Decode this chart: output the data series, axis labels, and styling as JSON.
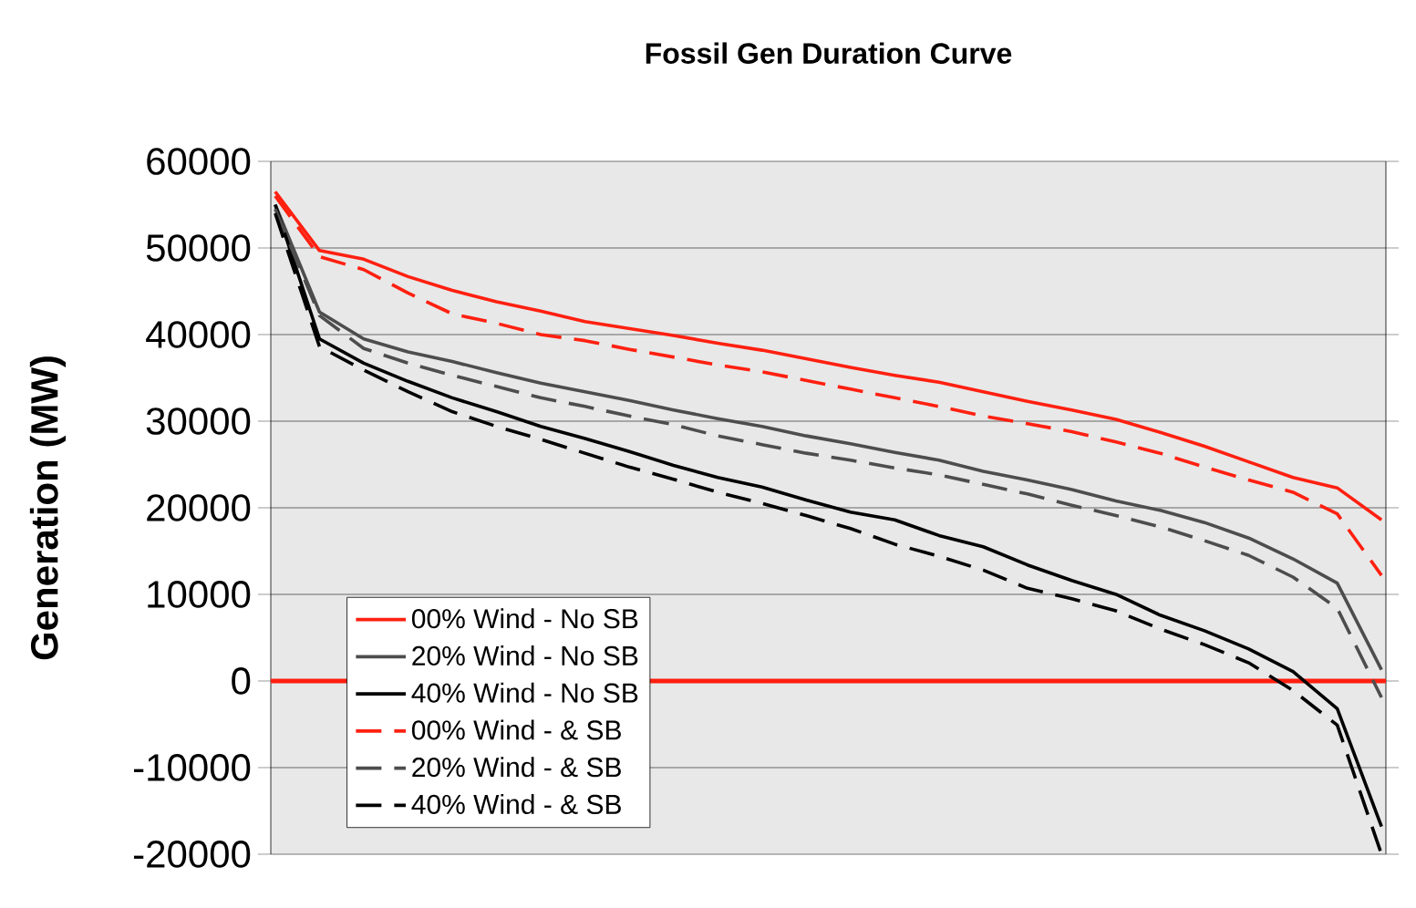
{
  "chart_data": {
    "type": "line",
    "title": "Fossil Gen Duration Curve",
    "ylabel": "Generation (MW)",
    "categories": [
      null,
      null,
      null,
      null,
      null,
      null,
      null,
      null,
      null,
      null,
      null,
      null,
      null,
      null,
      null,
      null,
      null,
      null,
      null,
      null,
      null,
      null,
      null,
      null,
      null,
      null
    ],
    "series": [
      {
        "name": "00% Wind - No SB",
        "color": "#ff2010",
        "line_style": "solid",
        "values": [
          56500,
          49700,
          48700,
          46700,
          45100,
          43800,
          42700,
          41500,
          40700,
          39900,
          39000,
          38200,
          37200,
          36200,
          35300,
          34500,
          33400,
          32300,
          31300,
          30200,
          28700,
          27100,
          25300,
          23500,
          22300,
          18600
        ]
      },
      {
        "name": "20% Wind - No SB",
        "color": "#4d4d4d",
        "line_style": "solid",
        "values": [
          55000,
          42600,
          39500,
          38000,
          36900,
          35600,
          34400,
          33400,
          32400,
          31300,
          30300,
          29400,
          28300,
          27400,
          26400,
          25500,
          24200,
          23200,
          22100,
          20800,
          19700,
          18300,
          16500,
          14100,
          11300,
          1300
        ]
      },
      {
        "name": "40% Wind - No SB",
        "color": "#000000",
        "line_style": "solid",
        "values": [
          55000,
          39500,
          36700,
          34600,
          32700,
          31100,
          29400,
          28000,
          26500,
          24900,
          23500,
          22400,
          20900,
          19500,
          18600,
          16800,
          15500,
          13400,
          11600,
          10000,
          7600,
          5800,
          3700,
          1100,
          -3200,
          -16800
        ]
      },
      {
        "name": "00% Wind - & SB",
        "color": "#ff2010",
        "line_style": "dashed",
        "values": [
          56000,
          49000,
          47500,
          44800,
          42400,
          41300,
          40000,
          39300,
          38300,
          37400,
          36500,
          35700,
          34700,
          33700,
          32700,
          31700,
          30600,
          29700,
          28800,
          27600,
          26300,
          24700,
          23200,
          21800,
          19300,
          12200
        ]
      },
      {
        "name": "20% Wind - & SB",
        "color": "#4d4d4d",
        "line_style": "dashed",
        "values": [
          54500,
          42200,
          38400,
          36700,
          35300,
          34000,
          32700,
          31700,
          30600,
          29600,
          28300,
          27300,
          26300,
          25500,
          24600,
          23800,
          22700,
          21600,
          20300,
          19100,
          17800,
          16200,
          14500,
          12000,
          8400,
          -1900
        ]
      },
      {
        "name": "40% Wind - & SB",
        "color": "#000000",
        "line_style": "dashed",
        "values": [
          54000,
          38600,
          35900,
          33400,
          31100,
          29400,
          27900,
          26300,
          24700,
          23300,
          21800,
          20500,
          19100,
          17600,
          15800,
          14400,
          12800,
          10700,
          9500,
          8100,
          6000,
          4200,
          2100,
          -1100,
          -5100,
          -20000
        ]
      }
    ],
    "ylim": [
      -20000,
      60000
    ],
    "yticks": [
      -20000,
      -10000,
      0,
      10000,
      20000,
      30000,
      40000,
      50000,
      60000
    ],
    "grid": "y",
    "legend": "bottom left",
    "ref_lines": [
      {
        "axis": "y",
        "value": 0,
        "color": "#ff2010"
      }
    ]
  }
}
